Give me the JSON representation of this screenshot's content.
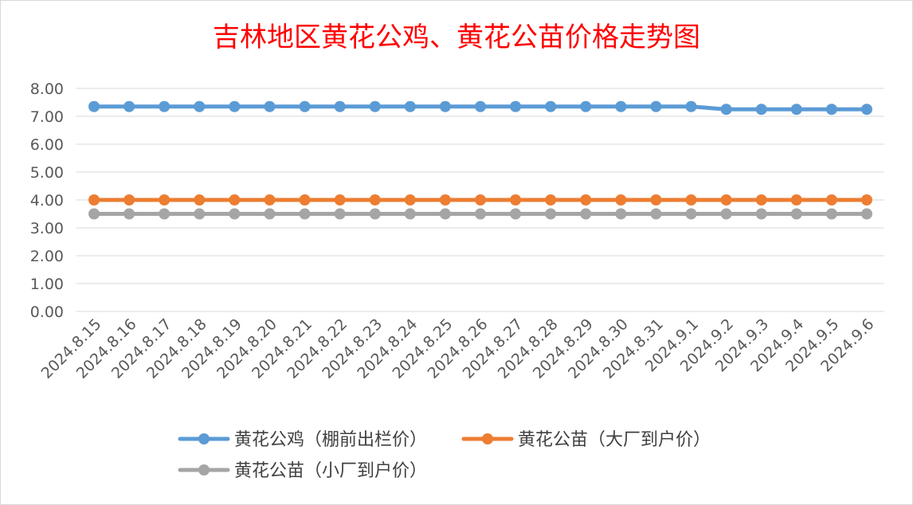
{
  "chart_data": {
    "type": "line",
    "title": "吉林地区黄花公鸡、黄花公苗价格走势图",
    "xlabel": "",
    "ylabel": "",
    "ylim": [
      0,
      8
    ],
    "yticks": [
      "0.00",
      "1.00",
      "2.00",
      "3.00",
      "4.00",
      "5.00",
      "6.00",
      "7.00",
      "8.00"
    ],
    "grid": "horizontal",
    "legend_position": "bottom",
    "categories": [
      "2024.8.15",
      "2024.8.16",
      "2024.8.17",
      "2024.8.18",
      "2024.8.19",
      "2024.8.20",
      "2024.8.21",
      "2024.8.22",
      "2024.8.23",
      "2024.8.24",
      "2024.8.25",
      "2024.8.26",
      "2024.8.27",
      "2024.8.28",
      "2024.8.29",
      "2024.8.30",
      "2024.8.31",
      "2024.9.1",
      "2024.9.2",
      "2024.9.3",
      "2024.9.4",
      "2024.9.5",
      "2024.9.6"
    ],
    "series": [
      {
        "name": "黄花公鸡（棚前出栏价）",
        "color": "#5b9bd5",
        "values": [
          7.35,
          7.35,
          7.35,
          7.35,
          7.35,
          7.35,
          7.35,
          7.35,
          7.35,
          7.35,
          7.35,
          7.35,
          7.35,
          7.35,
          7.35,
          7.35,
          7.35,
          7.35,
          7.25,
          7.25,
          7.25,
          7.25,
          7.25
        ]
      },
      {
        "name": "黄花公苗（大厂到户价）",
        "color": "#ed7d31",
        "values": [
          4.0,
          4.0,
          4.0,
          4.0,
          4.0,
          4.0,
          4.0,
          4.0,
          4.0,
          4.0,
          4.0,
          4.0,
          4.0,
          4.0,
          4.0,
          4.0,
          4.0,
          4.0,
          4.0,
          4.0,
          4.0,
          4.0,
          4.0
        ]
      },
      {
        "name": "黄花公苗（小厂到户价）",
        "color": "#a5a5a5",
        "values": [
          3.5,
          3.5,
          3.5,
          3.5,
          3.5,
          3.5,
          3.5,
          3.5,
          3.5,
          3.5,
          3.5,
          3.5,
          3.5,
          3.5,
          3.5,
          3.5,
          3.5,
          3.5,
          3.5,
          3.5,
          3.5,
          3.5,
          3.5
        ]
      }
    ]
  }
}
